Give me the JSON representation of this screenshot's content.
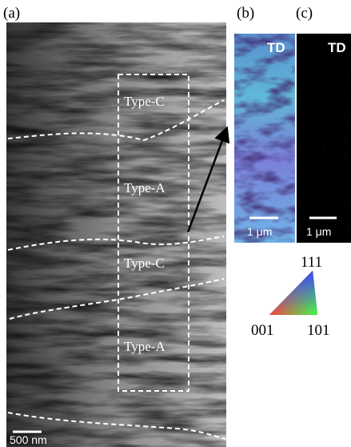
{
  "panels": [
    {
      "label": "(a)",
      "scale_bar": "500 nm",
      "regions": [
        "Type-C",
        "Type-A",
        "Type-C",
        "Type-A"
      ]
    },
    {
      "label": "(b)",
      "direction": "TD",
      "scale_bar": "1 μm"
    },
    {
      "label": "(c)",
      "direction": "TD",
      "scale_bar": "1 μm"
    }
  ],
  "legend": {
    "top": "111",
    "left": "001",
    "right": "101"
  }
}
